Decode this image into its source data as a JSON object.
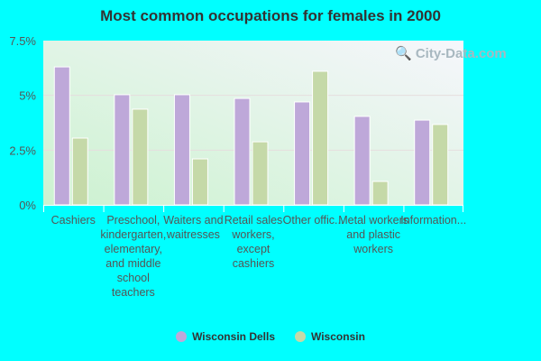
{
  "chart_data": {
    "type": "bar",
    "title": "Most common occupations for females in 2000",
    "categories": [
      "Cashiers",
      "Preschool, kindergarten, elementary, and middle school teachers",
      "Waiters and waitresses",
      "Retail sales workers, except cashiers",
      "Other offic...",
      "Metal workers and plastic workers",
      "Information..."
    ],
    "series": [
      {
        "name": "Wisconsin Dells",
        "color": "#bea8d9",
        "values": [
          6.3,
          5.03,
          5.03,
          4.86,
          4.7,
          4.04,
          3.87
        ]
      },
      {
        "name": "Wisconsin",
        "color": "#c5d9a8",
        "values": [
          3.05,
          4.37,
          2.1,
          2.88,
          6.1,
          1.07,
          3.67
        ]
      }
    ],
    "ylim": [
      0,
      7.5
    ],
    "yticks": [
      "0%",
      "2.5%",
      "5%",
      "7.5%"
    ],
    "ytick_values": [
      0,
      2.5,
      5,
      7.5
    ],
    "grid": true,
    "legend": "bottom",
    "watermark": "City-Data.com"
  }
}
